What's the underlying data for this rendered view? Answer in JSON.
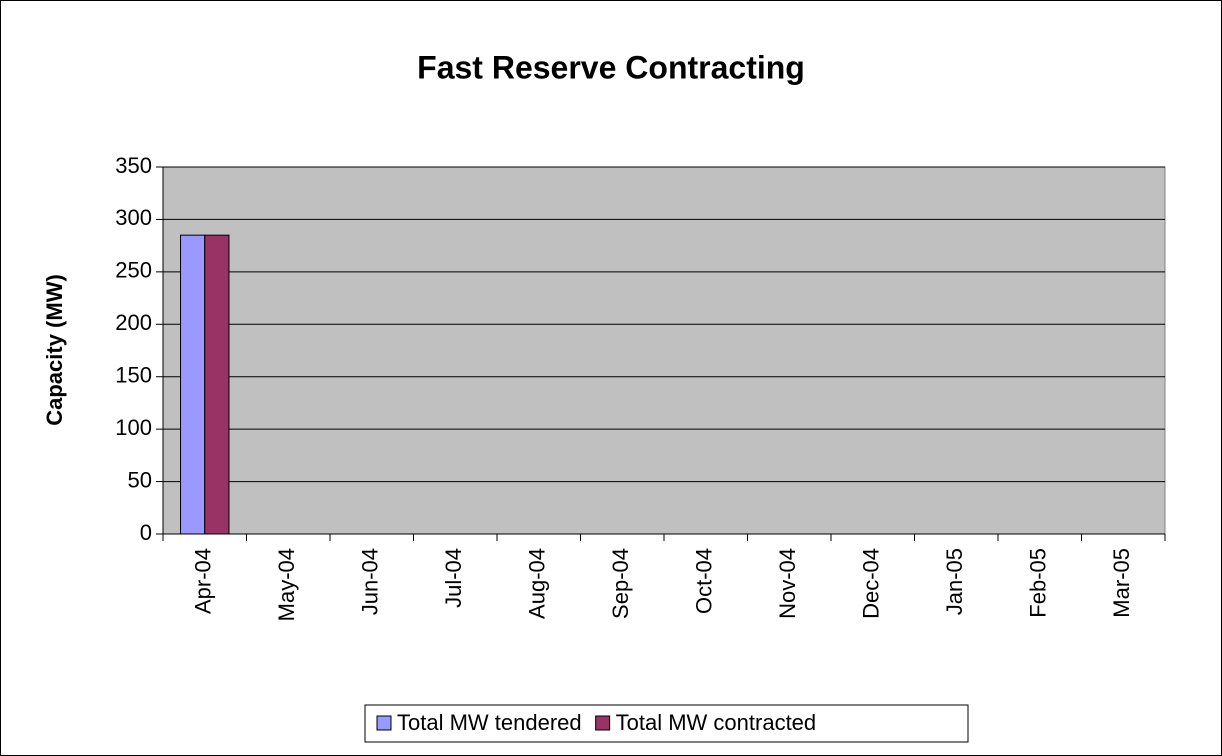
{
  "chart_data": {
    "type": "bar",
    "title": "Fast Reserve Contracting",
    "y_label": "Capacity (MW)",
    "categories": [
      "Apr-04",
      "May-04",
      "Jun-04",
      "Jul-04",
      "Aug-04",
      "Sep-04",
      "Oct-04",
      "Nov-04",
      "Dec-04",
      "Jan-05",
      "Feb-05",
      "Mar-05"
    ],
    "series": [
      {
        "name": "Total MW tendered",
        "color": "#9999ff",
        "values": [
          285,
          null,
          null,
          null,
          null,
          null,
          null,
          null,
          null,
          null,
          null,
          null
        ]
      },
      {
        "name": "Total MW contracted",
        "color": "#993366",
        "values": [
          285,
          null,
          null,
          null,
          null,
          null,
          null,
          null,
          null,
          null,
          null,
          null
        ]
      }
    ],
    "ylim": [
      0,
      350
    ],
    "yticks": [
      0,
      50,
      100,
      150,
      200,
      250,
      300,
      350
    ],
    "grid": true,
    "legend": "bottom"
  }
}
